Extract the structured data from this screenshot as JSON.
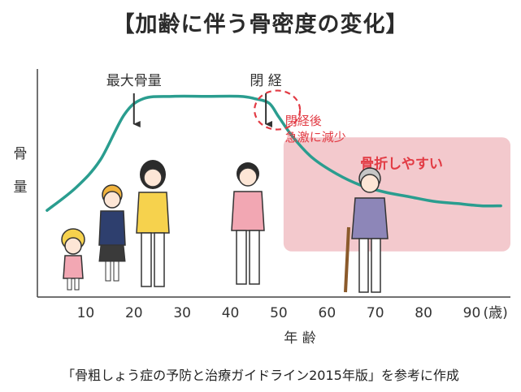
{
  "title": "【加齢に伴う骨密度の変化】",
  "source_note": "「骨粗しょう症の予防と治療ガイドライン2015年版」を参考に作成",
  "colors": {
    "curve": "#2a9d8f",
    "risk_zone": "#f3c9cd",
    "risk_text": "#e23b44",
    "annotation_red": "#e23b44",
    "axis": "#444444",
    "text": "#333333"
  },
  "chart_data": {
    "type": "line",
    "xlabel": "年 齢",
    "ylabel": "骨 量",
    "x_tick_labels": [
      "10",
      "20",
      "30",
      "40",
      "50",
      "60",
      "70",
      "80",
      "90"
    ],
    "x_unit_label": "(歳)",
    "x_ticks": [
      10,
      20,
      30,
      40,
      50,
      60,
      70,
      80,
      90
    ],
    "xlim": [
      0,
      98
    ],
    "ylim": [
      0,
      100
    ],
    "y_tick_labels": false,
    "grid": false,
    "series": [
      {
        "x": [
          2,
          8,
          13,
          18,
          22,
          28,
          35,
          42,
          45,
          48,
          50,
          53,
          57,
          62,
          67,
          72,
          77,
          82,
          87,
          92,
          96
        ],
        "y": [
          38,
          48,
          60,
          80,
          87,
          88,
          88,
          88,
          87,
          85,
          79,
          70,
          61,
          54,
          49,
          46,
          44,
          42,
          41,
          40,
          40
        ]
      }
    ],
    "annotations": {
      "peak_label": "最大骨量",
      "peak_age": 20,
      "menopause_label": "閉 経",
      "menopause_age": 47,
      "decline_note_line1": "閉経後",
      "decline_note_line2": "急激に減少",
      "risk_zone_label": "骨折しやすい",
      "risk_zone_age_range": [
        51,
        98
      ],
      "risk_zone_y_range": [
        20,
        70
      ]
    }
  }
}
